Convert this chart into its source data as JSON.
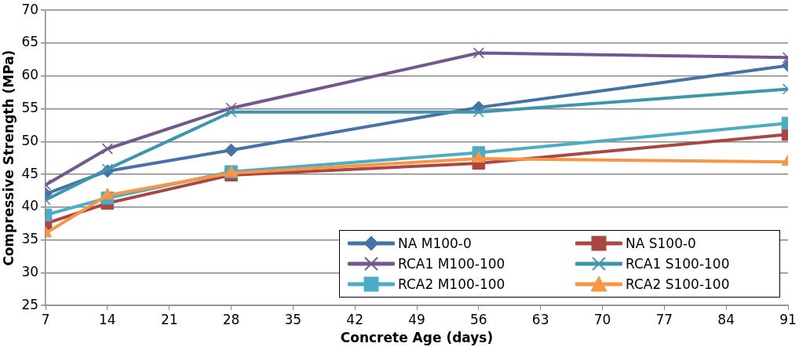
{
  "chart_data": {
    "type": "line",
    "xlabel": "Concrete Age (days)",
    "ylabel": "Compressive Strength (MPa)",
    "x": [
      7,
      14,
      28,
      56,
      91
    ],
    "xlim": [
      7,
      91
    ],
    "xticks": [
      7,
      14,
      21,
      28,
      35,
      42,
      49,
      56,
      63,
      70,
      77,
      84,
      91
    ],
    "ylim": [
      25,
      70
    ],
    "yticks": [
      25,
      30,
      35,
      40,
      45,
      50,
      55,
      60,
      65,
      70
    ],
    "grid": "y",
    "legend": "bottom right",
    "line_style": "solid",
    "series": [
      {
        "name": "NA M100-0",
        "color": "#4572a7",
        "marker": "diamond",
        "values": [
          42.0,
          45.5,
          48.7,
          55.2,
          61.6
        ]
      },
      {
        "name": "NA S100-0",
        "color": "#aa4643",
        "marker": "square",
        "values": [
          37.5,
          40.6,
          44.9,
          46.7,
          51.1
        ]
      },
      {
        "name": "RCA1 M100-100",
        "color": "#71588f",
        "marker": "cross",
        "values": [
          43.4,
          48.9,
          55.1,
          63.5,
          62.8
        ]
      },
      {
        "name": "RCA1 S100-100",
        "color": "#3d96ae",
        "marker": "cross",
        "values": [
          41.1,
          45.8,
          54.5,
          54.5,
          58.0
        ]
      },
      {
        "name": "RCA2 M100-100",
        "color": "#4bacc6",
        "marker": "square",
        "values": [
          38.8,
          41.4,
          45.4,
          48.3,
          52.8
        ]
      },
      {
        "name": "RCA2 S100-100",
        "color": "#f79646",
        "marker": "triangle",
        "values": [
          36.0,
          41.8,
          45.2,
          47.4,
          46.9
        ]
      }
    ]
  }
}
